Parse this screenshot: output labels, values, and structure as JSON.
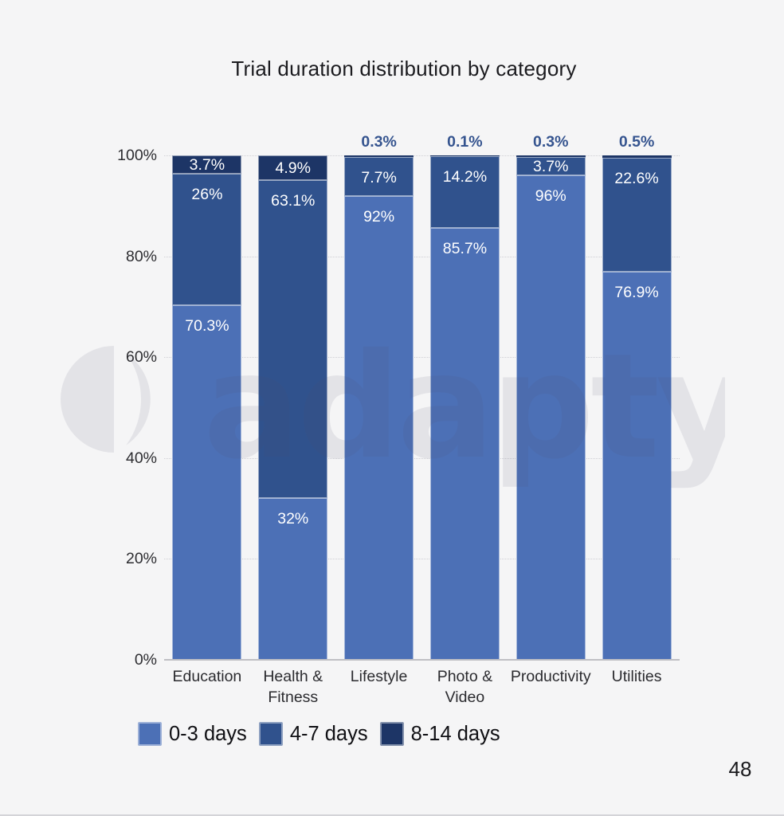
{
  "title": "Trial duration distribution by category",
  "page_number": "48",
  "watermark": {
    "text": "adapty"
  },
  "chart_data": {
    "type": "bar",
    "subtype": "stacked-100-percent",
    "title": "Trial duration distribution by category",
    "categories": [
      "Education",
      "Health &\nFitness",
      "Lifestyle",
      "Photo &\nVideo",
      "Productivity",
      "Utilities"
    ],
    "series": [
      {
        "name": "0-3 days",
        "color": "#4c70b6",
        "values": [
          70.3,
          32,
          92,
          85.7,
          96,
          76.9
        ]
      },
      {
        "name": "4-7 days",
        "color": "#30528d",
        "values": [
          26,
          63.1,
          7.7,
          14.2,
          3.7,
          22.6
        ]
      },
      {
        "name": "8-14 days",
        "color": "#1d3566",
        "values": [
          3.7,
          4.9,
          0.3,
          0.1,
          0.3,
          0.5
        ]
      }
    ],
    "above_bar_labels": [
      "",
      "",
      "0.3%",
      "0.1%",
      "0.3%",
      "0.5%"
    ],
    "y_ticks": [
      "0%",
      "20%",
      "40%",
      "60%",
      "80%",
      "100%"
    ],
    "ylim": [
      0,
      100
    ],
    "xlabel": "",
    "ylabel": "",
    "grid": "dotted-horizontal",
    "legend_position": "bottom-left",
    "value_label_inside_color": "#ffffff",
    "value_label_above_color": "#35548f",
    "background_color": "#f5f5f6"
  }
}
